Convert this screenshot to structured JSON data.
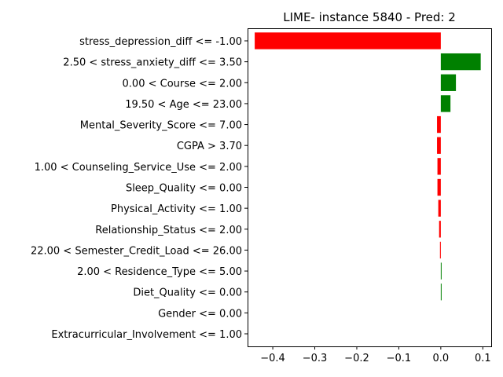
{
  "chart_data": {
    "type": "bar",
    "orientation": "horizontal",
    "title": "LIME- instance 5840 - Pred: 2",
    "xlabel": "",
    "ylabel": "",
    "xlim": [
      -0.46,
      0.12
    ],
    "x_ticks": [
      -0.4,
      -0.3,
      -0.2,
      -0.1,
      0.0,
      0.1
    ],
    "x_tick_labels": [
      "−0.4",
      "−0.3",
      "−0.2",
      "−0.1",
      "0.0",
      "0.1"
    ],
    "grid": false,
    "legend": "none",
    "positive_color": "#008000",
    "negative_color": "#ff0000",
    "categories": [
      "stress_depression_diff <= -1.00",
      "2.50 < stress_anxiety_diff <= 3.50",
      "0.00 < Course <= 2.00",
      "19.50 < Age <= 23.00",
      "Mental_Severity_Score <= 7.00",
      "CGPA > 3.70",
      "1.00 < Counseling_Service_Use <= 2.00",
      "Sleep_Quality <= 0.00",
      "Physical_Activity <= 1.00",
      "Relationship_Status <= 2.00",
      "22.00 < Semester_Credit_Load <= 26.00",
      "2.00 < Residence_Type <= 5.00",
      "Diet_Quality <= 0.00",
      "Gender <= 0.00",
      "Extracurricular_Involvement <= 1.00"
    ],
    "values": [
      -0.443,
      0.095,
      0.036,
      0.023,
      -0.009,
      -0.009,
      -0.008,
      -0.008,
      -0.006,
      -0.004,
      -0.002,
      0.001,
      0.001,
      0.0,
      0.0
    ]
  }
}
